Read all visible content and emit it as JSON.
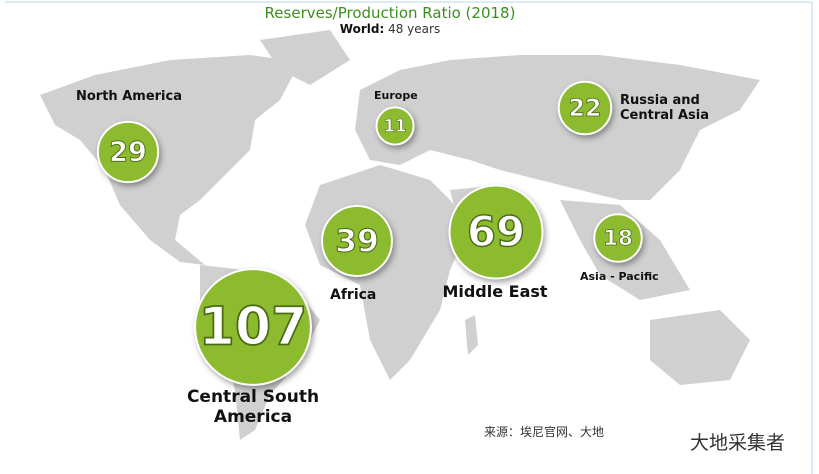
{
  "header": {
    "title": "Reserves/Production Ratio (2018)",
    "world_label": "World:",
    "world_value": "48 years"
  },
  "regions": [
    {
      "name": "North America",
      "value": 29
    },
    {
      "name": "Europe",
      "value": 11
    },
    {
      "name": "Russia and Central Asia",
      "value": 22
    },
    {
      "name": "Africa",
      "value": 39
    },
    {
      "name": "Middle East",
      "value": 69
    },
    {
      "name": "Asia - Pacific",
      "value": 18
    },
    {
      "name": "Central South America",
      "value": 107
    }
  ],
  "source": "来源：埃尼官网、大地",
  "watermark": "大地采集者"
}
